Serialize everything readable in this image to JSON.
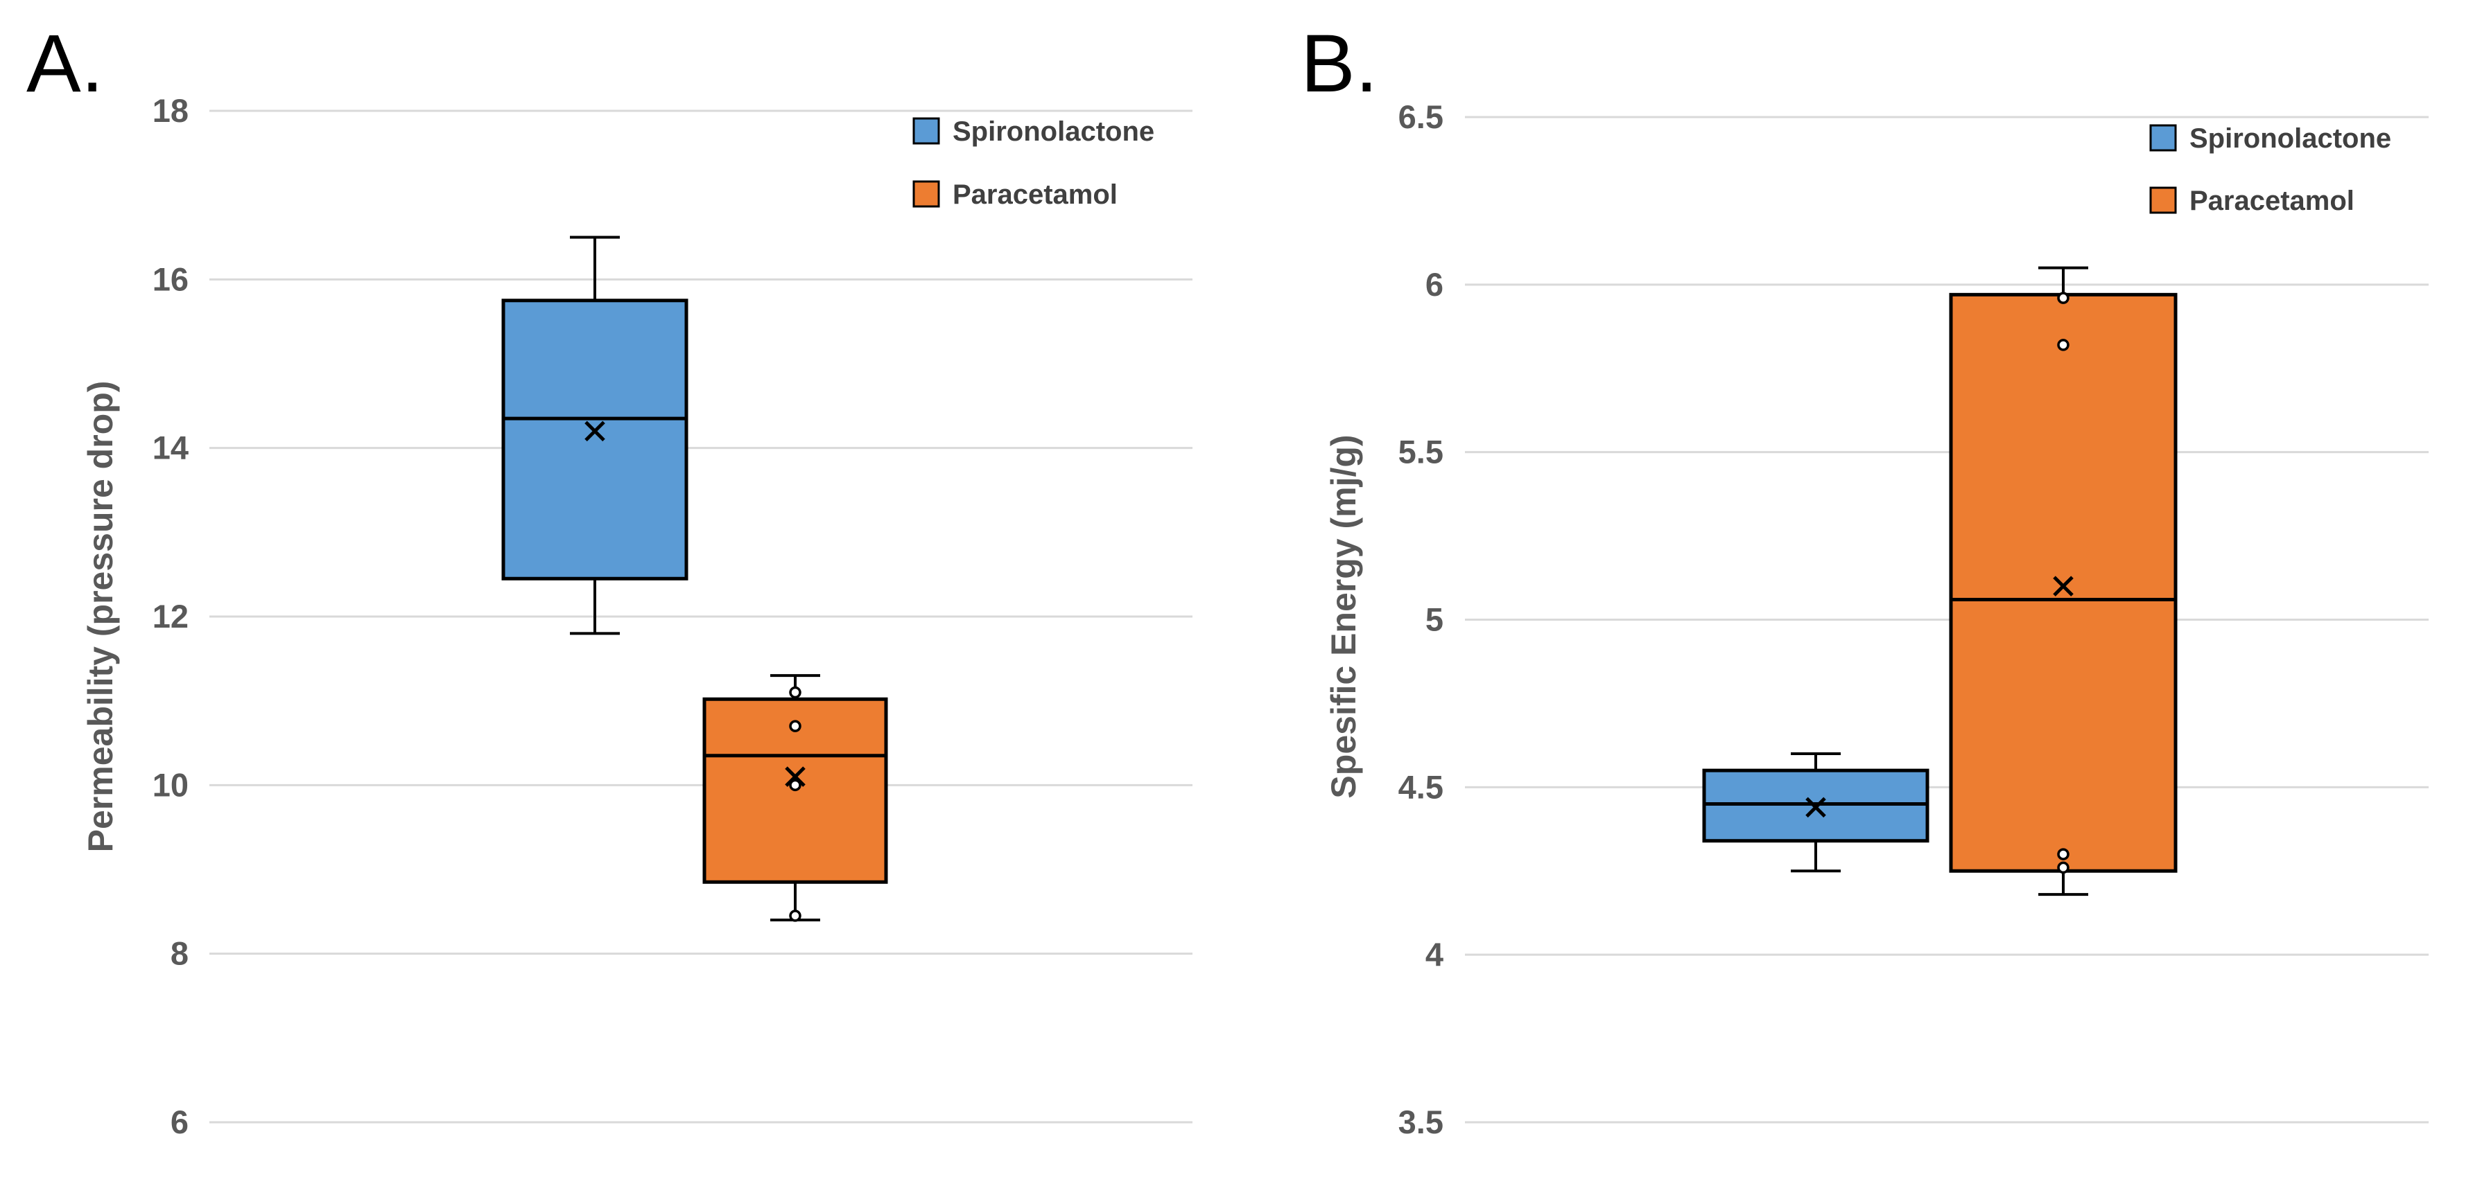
{
  "colors": {
    "spironolactone": "#5b9bd5",
    "paracetamol": "#ed7d31",
    "grid": "#d9d9d9",
    "axis_text": "#595959",
    "stroke": "#000000"
  },
  "chart_data": [
    {
      "type": "box",
      "panel_label": "A.",
      "ylabel": "Permeability (pressure drop)",
      "ylim": [
        6,
        18
      ],
      "yticks": [
        6,
        8,
        10,
        12,
        14,
        16,
        18
      ],
      "legend_position": "top-right",
      "series": [
        {
          "name": "Spironolactone",
          "min": 11.8,
          "q1": 12.45,
          "median": 14.35,
          "q3": 15.75,
          "max": 16.5,
          "mean": 14.2,
          "points": []
        },
        {
          "name": "Paracetamol",
          "min": 8.4,
          "q1": 8.85,
          "median": 10.35,
          "q3": 11.02,
          "max": 11.3,
          "mean": 10.1,
          "points": [
            11.1,
            10.7,
            10.0,
            8.45
          ]
        }
      ]
    },
    {
      "type": "box",
      "panel_label": "B.",
      "ylabel": "Spesific Energy (mj/g)",
      "ylim": [
        3.5,
        6.5
      ],
      "yticks": [
        3.5,
        4,
        4.5,
        5,
        5.5,
        6,
        6.5
      ],
      "legend_position": "top-right",
      "series": [
        {
          "name": "Spironolactone",
          "min": 4.25,
          "q1": 4.34,
          "median": 4.45,
          "q3": 4.55,
          "max": 4.6,
          "mean": 4.44,
          "points": []
        },
        {
          "name": "Paracetamol",
          "min": 4.18,
          "q1": 4.25,
          "median": 5.06,
          "q3": 5.97,
          "max": 6.05,
          "mean": 5.1,
          "points": [
            5.96,
            5.82,
            4.3,
            4.26
          ]
        }
      ]
    }
  ]
}
